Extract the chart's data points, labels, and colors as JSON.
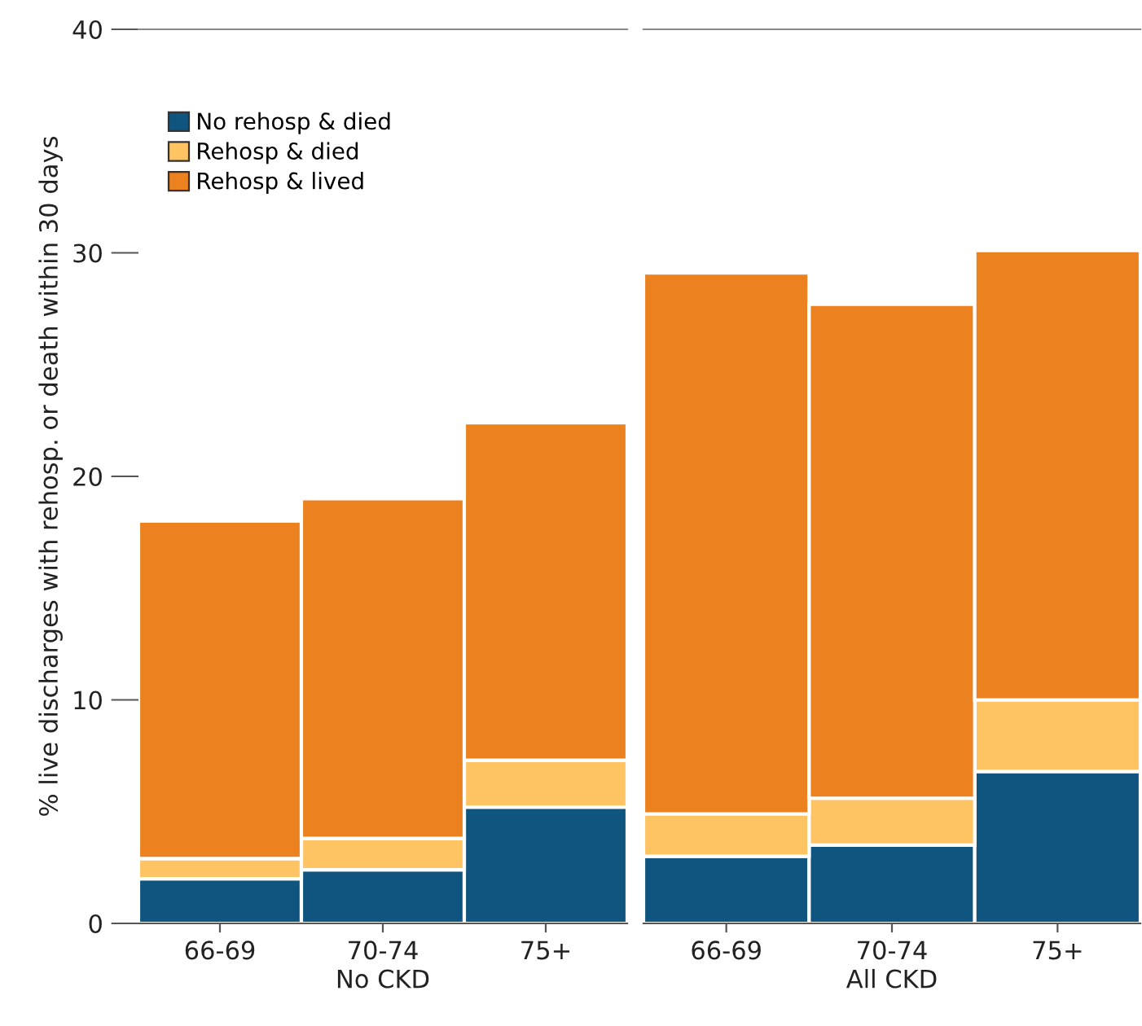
{
  "chart_data": [
    {
      "type": "bar",
      "stacked": true,
      "xlabel": "No CKD",
      "ylabel": "% live discharges with rehosp. or death within 30 days",
      "categories": [
        "66-69",
        "70-74",
        "75+"
      ],
      "ylim": [
        0,
        40
      ],
      "yticks": [
        0,
        10,
        20,
        30,
        40
      ],
      "grid": false,
      "legend": "top left",
      "series": [
        {
          "name": "No rehosp & died",
          "color": "#10557f",
          "values": [
            2.0,
            2.4,
            5.2
          ]
        },
        {
          "name": "Rehosp & died",
          "color": "#fec464",
          "values": [
            0.9,
            1.4,
            2.1
          ]
        },
        {
          "name": "Rehosp & lived",
          "color": "#ec821f",
          "values": [
            15.1,
            15.2,
            15.1
          ]
        }
      ]
    },
    {
      "type": "bar",
      "stacked": true,
      "xlabel": "All CKD",
      "categories": [
        "66-69",
        "70-74",
        "75+"
      ],
      "ylim": [
        0,
        40
      ],
      "grid": false,
      "tick_labels": "x",
      "series": [
        {
          "color": "#10557f",
          "values": [
            3.0,
            3.5,
            6.8
          ]
        },
        {
          "color": "#fec464",
          "values": [
            1.9,
            2.1,
            3.2
          ]
        },
        {
          "color": "#ec821f",
          "values": [
            24.2,
            22.1,
            20.1
          ]
        }
      ]
    }
  ]
}
